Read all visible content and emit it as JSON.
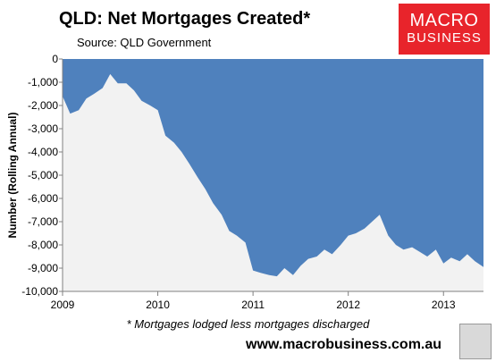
{
  "title": "QLD: Net Mortgages Created*",
  "subtitle": "Source: QLD Government",
  "logo": {
    "line1": "MACRO",
    "line2": "BUSINESS",
    "color": "#e8242b"
  },
  "footnote": "* Mortgages lodged less mortgages discharged",
  "website": "www.macrobusiness.com.au",
  "chart_data": {
    "type": "area",
    "title": "QLD: Net Mortgages Created*",
    "ylabel": "Number (Rolling Annual)",
    "xlabel": "",
    "ylim": [
      -10000,
      0
    ],
    "xlim": [
      2009.0,
      2013.42
    ],
    "yticks": [
      0,
      -1000,
      -2000,
      -3000,
      -4000,
      -5000,
      -6000,
      -7000,
      -8000,
      -9000,
      -10000
    ],
    "ytick_labels": [
      "0",
      "-1,000",
      "-2,000",
      "-3,000",
      "-4,000",
      "-5,000",
      "-6,000",
      "-7,000",
      "-8,000",
      "-9,000",
      "-10,000"
    ],
    "xticks": [
      2009,
      2010,
      2011,
      2012,
      2013
    ],
    "xtick_labels": [
      "2009",
      "2010",
      "2011",
      "2012",
      "2013"
    ],
    "fill_color": "#4f81bd",
    "background_color": "#f2f2f2",
    "grid": false,
    "series": [
      {
        "x": [
          2009.0,
          2009.08,
          2009.17,
          2009.25,
          2009.33,
          2009.42,
          2009.5,
          2009.58,
          2009.67,
          2009.75,
          2009.83,
          2009.92,
          2010.0,
          2010.08,
          2010.17,
          2010.25,
          2010.33,
          2010.42,
          2010.5,
          2010.58,
          2010.67,
          2010.75,
          2010.83,
          2010.92,
          2011.0,
          2011.08,
          2011.17,
          2011.25,
          2011.33,
          2011.42,
          2011.5,
          2011.58,
          2011.67,
          2011.75,
          2011.83,
          2011.92,
          2012.0,
          2012.08,
          2012.17,
          2012.25,
          2012.33,
          2012.42,
          2012.5,
          2012.58,
          2012.67,
          2012.75,
          2012.83,
          2012.92,
          2013.0,
          2013.08,
          2013.17,
          2013.25,
          2013.33,
          2013.42
        ],
        "values": [
          -1600,
          -2350,
          -2200,
          -1700,
          -1500,
          -1250,
          -650,
          -1050,
          -1050,
          -1350,
          -1800,
          -2000,
          -2200,
          -3300,
          -3600,
          -4000,
          -4500,
          -5100,
          -5600,
          -6200,
          -6700,
          -7400,
          -7600,
          -7900,
          -9100,
          -9200,
          -9300,
          -9350,
          -9000,
          -9300,
          -8900,
          -8600,
          -8500,
          -8200,
          -8400,
          -8000,
          -7600,
          -7500,
          -7300,
          -7000,
          -6700,
          -7600,
          -8000,
          -8200,
          -8100,
          -8300,
          -8500,
          -8200,
          -8800,
          -8550,
          -8700,
          -8400,
          -8700,
          -8950
        ]
      }
    ]
  }
}
